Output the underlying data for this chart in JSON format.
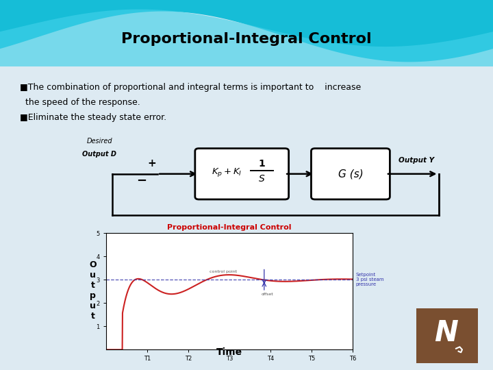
{
  "title": "Proportional-Integral Control",
  "title_fontsize": 16,
  "slide_bg": "#ddeaf2",
  "bullet1_line1": "■The combination of proportional and integral terms is important to    increase",
  "bullet1_line2": "  the speed of the response.",
  "bullet2": "■Eliminate the steady state error.",
  "block2_text": "G (s)",
  "output_label": "Output Y",
  "graph_title": "Proportional-Integral Control",
  "graph_title_color": "#cc0000",
  "ylabel_text": "O\nu\nt\np\nu\nt",
  "xlabel_text": "Time",
  "setpoint_label": "Setpoint\n3 psi steam\npressure",
  "offset_label": "offset",
  "control_point_label": "control point",
  "setpoint_value": 3.0,
  "ylim": [
    0,
    5
  ],
  "time_ticks": [
    "T1",
    "T2",
    "T3",
    "T4",
    "T5",
    "T6"
  ],
  "graph_bg": "#ffffff",
  "arrow_color": "#3333aa",
  "curve_color": "#cc2222",
  "header_teal1": "#00b8d4",
  "header_teal2": "#40d0e8",
  "header_bg": "#cce8f0",
  "logo_color": "#7a4f30"
}
